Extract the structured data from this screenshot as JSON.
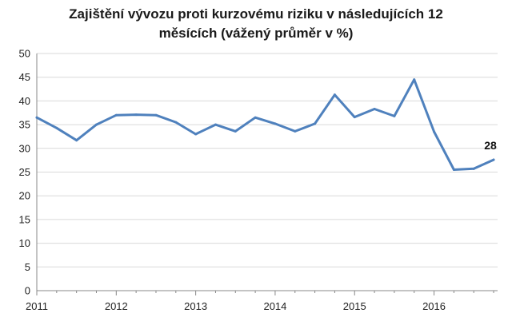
{
  "chart_data": {
    "type": "line",
    "title_line1": "Zajištění vývozu proti kurzovému riziku v následujících 12",
    "title_line2": "měsících (vážený průměr v %)",
    "xlabel": "",
    "ylabel": "",
    "ylim": [
      0,
      50
    ],
    "yticks": [
      0,
      5,
      10,
      15,
      20,
      25,
      30,
      35,
      40,
      45,
      50
    ],
    "xlim": [
      2011,
      2016.8
    ],
    "xticks": [
      "2011",
      "2012",
      "2013",
      "2014",
      "2015",
      "2016"
    ],
    "grid": "horizontal",
    "line_color": "#4f81bd",
    "end_label": "28",
    "series": [
      {
        "x": [
          2011.0,
          2011.25,
          2011.5,
          2011.75,
          2012.0,
          2012.25,
          2012.5,
          2012.75,
          2013.0,
          2013.25,
          2013.5,
          2013.75,
          2014.0,
          2014.25,
          2014.5,
          2014.75,
          2015.0,
          2015.25,
          2015.5,
          2015.75,
          2016.0,
          2016.25,
          2016.5,
          2016.75
        ],
        "values": [
          36.5,
          34.3,
          31.7,
          35.0,
          37.0,
          37.1,
          37.0,
          35.5,
          33.0,
          35.0,
          33.6,
          36.5,
          35.2,
          33.6,
          35.2,
          41.3,
          36.6,
          38.3,
          36.8,
          44.5,
          33.5,
          25.5,
          25.7,
          27.6
        ]
      }
    ]
  }
}
